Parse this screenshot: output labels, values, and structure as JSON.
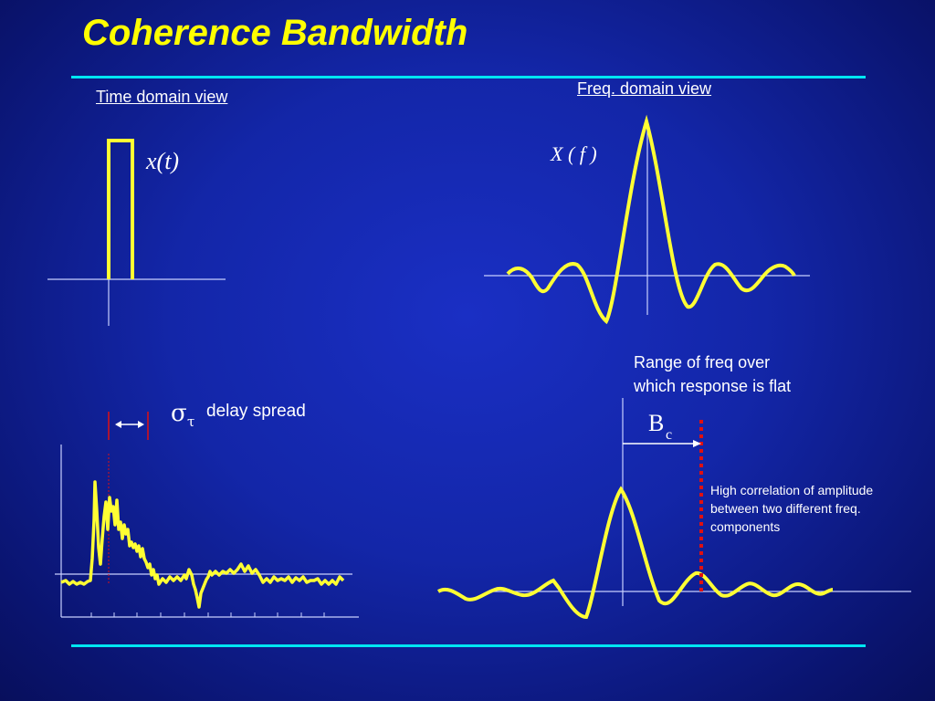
{
  "slide": {
    "title": "Coherence Bandwidth",
    "time_domain_label": "Time domain view",
    "freq_domain_label": "Freq. domain view",
    "time_signal": "x(t)",
    "freq_signal": "X ( f )",
    "sigma_symbol": "σ",
    "tau_symbol": "τ",
    "delay_spread_label": "delay spread",
    "range_note_line1": "Range of freq over",
    "range_note_line2": "which response is flat",
    "bc_main": "B",
    "bc_sub": "c",
    "correlation_note_line1": "High correlation of amplitude",
    "correlation_note_line2": "between two different freq.",
    "correlation_note_line3": "components"
  },
  "colors": {
    "background": "#1326a8",
    "title": "#ffff00",
    "curve": "#ffff33",
    "rule": "#00e6f2",
    "axis": "#c8d0ff",
    "marker_red": "#e01010"
  }
}
